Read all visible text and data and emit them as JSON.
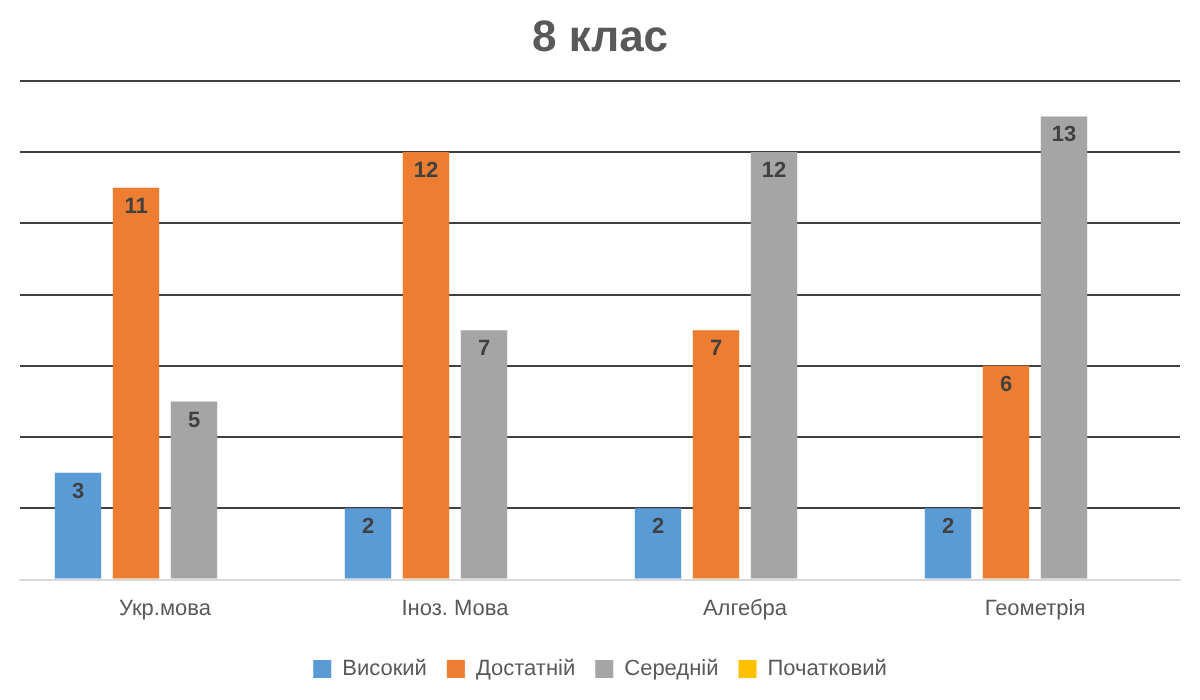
{
  "chart_data": {
    "type": "bar",
    "title": "8 клас",
    "categories": [
      "Укр.мова",
      "Іноз. Мова",
      "Алгебра",
      "Геометрія"
    ],
    "series": [
      {
        "name": "Високий",
        "color": "#5b9bd5",
        "values": [
          3,
          2,
          2,
          2
        ],
        "value_labels": [
          "3",
          "2",
          "2",
          "2"
        ]
      },
      {
        "name": "Достатній",
        "color": "#ed7d31",
        "values": [
          11,
          12,
          7,
          6
        ],
        "value_labels": [
          "11",
          "12",
          "7",
          "6"
        ]
      },
      {
        "name": "Середній",
        "color": "#a5a5a5",
        "values": [
          5,
          7,
          12,
          13
        ],
        "value_labels": [
          "5",
          "7",
          "12",
          "13"
        ]
      },
      {
        "name": "Початковий",
        "color": "#ffc000",
        "values": [
          0,
          0,
          0,
          0
        ],
        "value_labels": [
          null,
          null,
          null,
          null
        ]
      }
    ],
    "ylim": [
      0,
      14
    ],
    "yticks": [
      {
        "value": 0,
        "label": null
      },
      {
        "value": 2,
        "label": null
      },
      {
        "value": 4,
        "label": null
      },
      {
        "value": 6,
        "label": null
      },
      {
        "value": 8,
        "label": null
      },
      {
        "value": 10,
        "label": null
      },
      {
        "value": 12,
        "label": null
      },
      {
        "value": 14,
        "label": null
      }
    ],
    "grid": "y",
    "legend": "bottom",
    "tick_labels": "x"
  }
}
